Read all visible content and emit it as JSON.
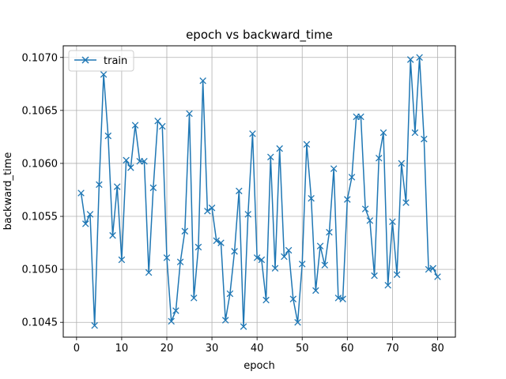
{
  "chart_data": {
    "type": "line",
    "title": "epoch vs backward_time",
    "xlabel": "epoch",
    "ylabel": "backward_time",
    "xlim": [
      -2.95,
      83.95
    ],
    "ylim": [
      0.10436,
      0.10711
    ],
    "xticks": [
      0,
      10,
      20,
      30,
      40,
      50,
      60,
      70,
      80
    ],
    "yticks": [
      0.1045,
      0.105,
      0.1055,
      0.106,
      0.1065,
      0.107
    ],
    "ytick_labels": [
      "0.1045",
      "0.1050",
      "0.1055",
      "0.1060",
      "0.1065",
      "0.1070"
    ],
    "grid": true,
    "legend_position": "top-left",
    "series": [
      {
        "name": "train",
        "color": "#1f77b4",
        "marker": "x",
        "x": [
          1,
          2,
          3,
          4,
          5,
          6,
          7,
          8,
          9,
          10,
          11,
          12,
          13,
          14,
          15,
          16,
          17,
          18,
          19,
          20,
          21,
          22,
          23,
          24,
          25,
          26,
          27,
          28,
          29,
          30,
          31,
          32,
          33,
          34,
          35,
          36,
          37,
          38,
          39,
          40,
          41,
          42,
          43,
          44,
          45,
          46,
          47,
          48,
          49,
          50,
          51,
          52,
          53,
          54,
          55,
          56,
          57,
          58,
          59,
          60,
          61,
          62,
          63,
          64,
          65,
          66,
          67,
          68,
          69,
          70,
          71,
          72,
          73,
          74,
          75,
          76,
          77,
          78,
          79,
          80
        ],
        "values": [
          0.10572,
          0.10543,
          0.10552,
          0.10447,
          0.1058,
          0.10684,
          0.10626,
          0.10532,
          0.10578,
          0.10509,
          0.10603,
          0.10596,
          0.10636,
          0.10602,
          0.10602,
          0.10497,
          0.10577,
          0.1064,
          0.10635,
          0.10511,
          0.10451,
          0.10461,
          0.10507,
          0.10536,
          0.10647,
          0.10473,
          0.10521,
          0.10678,
          0.10555,
          0.10558,
          0.10527,
          0.10525,
          0.10452,
          0.10477,
          0.10517,
          0.10574,
          0.10446,
          0.10552,
          0.10628,
          0.10511,
          0.10509,
          0.10471,
          0.10606,
          0.10501,
          0.10614,
          0.10512,
          0.10518,
          0.10472,
          0.1045,
          0.10505,
          0.10618,
          0.10567,
          0.1048,
          0.10522,
          0.10504,
          0.10535,
          0.10595,
          0.10473,
          0.10472,
          0.10566,
          0.10587,
          0.10644,
          0.10644,
          0.10557,
          0.10546,
          0.10494,
          0.10605,
          0.10629,
          0.10485,
          0.10545,
          0.10495,
          0.106,
          0.10563,
          0.10698,
          0.10629,
          0.107,
          0.10623,
          0.105,
          0.10501,
          0.10493
        ]
      }
    ]
  }
}
